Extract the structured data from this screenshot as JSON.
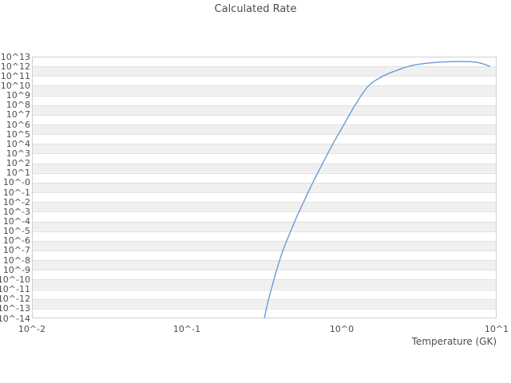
{
  "chart_data": {
    "type": "line",
    "title": "Calculated Rate",
    "xlabel": "Temperature (GK)",
    "ylabel": "",
    "xscale": "log",
    "yscale": "log",
    "xlim": [
      0.01,
      10
    ],
    "ylim": [
      1e-14,
      10000000000000.0
    ],
    "grid": "horizontal gridlines each decade with alternating shaded bands; no vertical gridlines",
    "legend": "none",
    "x_ticks": [
      "10^-2",
      "10^-1",
      "10^0",
      "10^1"
    ],
    "x_tick_values": [
      0.01,
      0.1,
      1,
      10
    ],
    "y_ticks": [
      "10^13",
      "10^12",
      "10^11",
      "10^10",
      "10^9",
      "10^8",
      "10^7",
      "10^6",
      "10^5",
      "10^4",
      "10^3",
      "10^2",
      "10^1",
      "10^-0",
      "10^-1",
      "10^-2",
      "10^-3",
      "10^-4",
      "10^-5",
      "10^-6",
      "10^-7",
      "10^-8",
      "10^-9",
      "10^-10",
      "10^-11",
      "10^-12",
      "10^-13",
      "10^-14"
    ],
    "y_tick_exponents": [
      13,
      12,
      11,
      10,
      9,
      8,
      7,
      6,
      5,
      4,
      3,
      2,
      1,
      0,
      -1,
      -2,
      -3,
      -4,
      -5,
      -6,
      -7,
      -8,
      -9,
      -10,
      -11,
      -12,
      -13,
      -14
    ],
    "series": [
      {
        "name": "Calculated Rate",
        "color": "#6b9bd8",
        "T_GK": [
          0.316,
          0.335,
          0.351,
          0.38,
          0.417,
          0.46,
          0.513,
          0.575,
          0.65,
          0.759,
          0.877,
          1.0,
          1.22,
          1.49,
          1.85,
          2.24,
          2.63,
          3.16,
          3.98,
          5.01,
          5.79,
          7.0,
          7.94,
          9.0
        ],
        "log10_rate": [
          -14.0,
          -12.2,
          -11.0,
          -9.0,
          -7.0,
          -5.3,
          -3.5,
          -1.8,
          0.0,
          2.1,
          4.0,
          5.6,
          8.0,
          10.0,
          11.0,
          11.55,
          11.95,
          12.22,
          12.4,
          12.48,
          12.5,
          12.46,
          12.32,
          12.02
        ]
      }
    ]
  },
  "style": {
    "text_color": "#4d4d4d",
    "band_color": "#f0f0f0",
    "gridline_color": "#e2e2e2",
    "border_color": "#d0d0d0",
    "line_color": "#6b9bd8",
    "background_color": "#ffffff"
  }
}
